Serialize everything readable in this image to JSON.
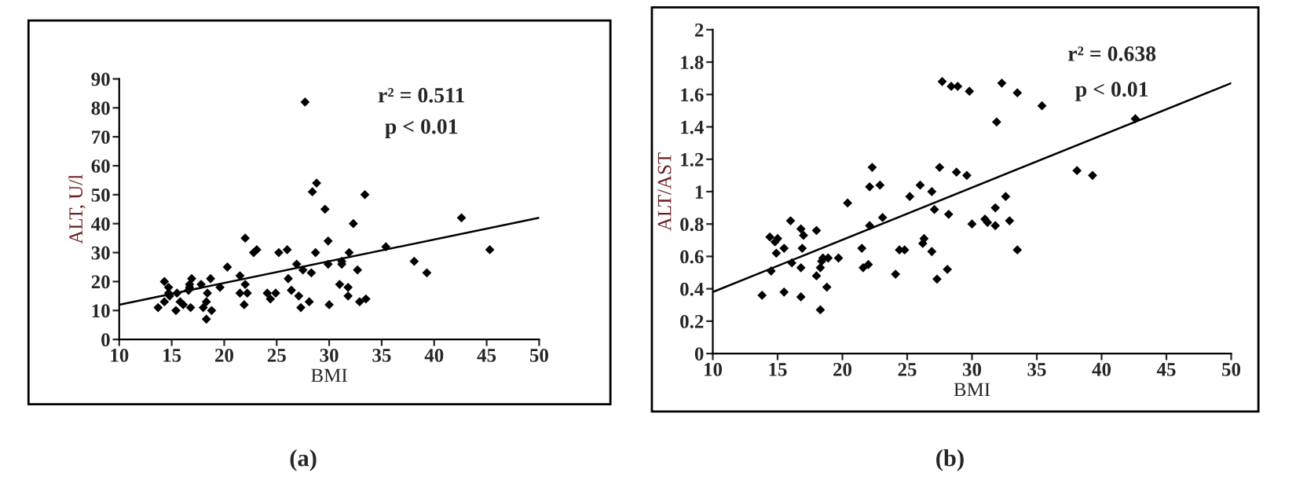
{
  "chart_data": [
    {
      "type": "scatter",
      "xlabel": "BMI",
      "ylabel": "ALT, U/l",
      "xlim": [
        10,
        50
      ],
      "ylim": [
        0,
        90
      ],
      "xticks": [
        10,
        15,
        20,
        25,
        30,
        35,
        40,
        45,
        50
      ],
      "yticks": [
        0,
        10,
        20,
        30,
        40,
        50,
        60,
        70,
        80,
        90
      ],
      "grid": false,
      "legend": false,
      "annotations": [
        "r² = 0.511",
        "p < 0.01",
        "(a)"
      ],
      "series": [
        {
          "color": "#000000",
          "marker": "diamond",
          "x": [
            13.7,
            14.3,
            14.3,
            14.7,
            14.7,
            14.8,
            15.4,
            15.5,
            15.8,
            16.1,
            16.6,
            16.7,
            16.8,
            16.9,
            16.7,
            17.8,
            18,
            18.3,
            18.4,
            18.3,
            18.7,
            18.8,
            19.6,
            20.3,
            21.5,
            21.5,
            22,
            22,
            21.9,
            22.2,
            22.8,
            23.1,
            24.1,
            24.4,
            24.9,
            25.2,
            26,
            26.1,
            26.4,
            26.9,
            27.1,
            27.3,
            27.5,
            27.7,
            28.1,
            28.3,
            28.4,
            28.8,
            28.7,
            29.6,
            29.9,
            29.9,
            30,
            31,
            31.2,
            31.2,
            31.8,
            31.8,
            31.9,
            32.3,
            32.7,
            32.9,
            33.4,
            33.5,
            35.4,
            38.1,
            39.3,
            42.6,
            45.3
          ],
          "values": [
            11,
            20,
            13,
            18,
            16,
            15,
            10,
            16,
            13,
            12,
            17,
            18,
            11,
            21,
            19,
            19,
            11,
            13,
            16,
            7,
            21,
            10,
            18,
            25,
            22,
            16,
            35,
            19,
            12,
            16,
            30,
            31,
            16,
            14,
            16,
            30,
            31,
            21,
            17,
            26,
            15,
            11,
            24,
            82,
            13,
            23,
            51,
            54,
            30,
            45,
            34,
            26,
            12,
            19,
            26,
            27,
            18,
            15,
            30,
            40,
            24,
            13,
            50,
            14,
            32,
            27,
            23,
            42,
            31
          ]
        },
        {
          "type": "line",
          "color": "#000000",
          "marker": "none",
          "x": [
            10,
            50
          ],
          "values": [
            12,
            42
          ]
        }
      ]
    },
    {
      "type": "scatter",
      "xlabel": "BMI",
      "ylabel": "ALT/AST",
      "xlim": [
        10,
        50
      ],
      "ylim": [
        0,
        2
      ],
      "xticks": [
        10,
        15,
        20,
        25,
        30,
        35,
        40,
        45,
        50
      ],
      "yticks": [
        0,
        0.2,
        0.4,
        0.6,
        0.8,
        1,
        1.2,
        1.4,
        1.6,
        1.8,
        2
      ],
      "grid": false,
      "legend": false,
      "annotations": [
        "r² = 0.638",
        "p < 0.01",
        "(b)"
      ],
      "series": [
        {
          "color": "#000000",
          "marker": "diamond",
          "x": [
            13.8,
            14.4,
            14.5,
            14.8,
            14.9,
            15,
            15.5,
            15.5,
            16,
            16.1,
            16.8,
            16.8,
            16.8,
            16.9,
            17,
            18,
            18,
            18.3,
            18.3,
            18.4,
            18.5,
            18.8,
            18.9,
            19.7,
            20.4,
            21.5,
            21.6,
            22,
            22.1,
            22.1,
            22.3,
            22.9,
            23.1,
            24.1,
            24.4,
            24.8,
            25.2,
            26,
            26.2,
            26.3,
            26.9,
            26.9,
            27.1,
            27.3,
            27.5,
            27.7,
            28.1,
            28.2,
            28.4,
            28.9,
            28.8,
            29.6,
            29.8,
            30,
            31,
            31.2,
            31.8,
            31.8,
            31.9,
            32.3,
            32.6,
            32.9,
            33.5,
            33.5,
            35.4,
            38.1,
            39.3,
            42.6
          ],
          "values": [
            0.36,
            0.72,
            0.51,
            0.69,
            0.62,
            0.71,
            0.65,
            0.38,
            0.82,
            0.56,
            0.77,
            0.53,
            0.35,
            0.65,
            0.73,
            0.76,
            0.48,
            0.27,
            0.53,
            0.57,
            0.59,
            0.41,
            0.59,
            0.59,
            0.93,
            0.65,
            0.53,
            0.55,
            0.79,
            1.03,
            1.15,
            1.04,
            0.84,
            0.49,
            0.64,
            0.64,
            0.97,
            1.04,
            0.68,
            0.71,
            1.0,
            0.63,
            0.89,
            0.46,
            1.15,
            1.68,
            0.52,
            0.86,
            1.65,
            1.65,
            1.12,
            1.1,
            1.62,
            0.8,
            0.83,
            0.81,
            0.9,
            0.79,
            1.43,
            1.67,
            0.97,
            0.82,
            1.61,
            0.64,
            1.53,
            1.13,
            1.1,
            1.45
          ]
        },
        {
          "type": "line",
          "color": "#000000",
          "marker": "none",
          "x": [
            10,
            50
          ],
          "values": [
            0.38,
            1.67
          ]
        }
      ]
    }
  ]
}
